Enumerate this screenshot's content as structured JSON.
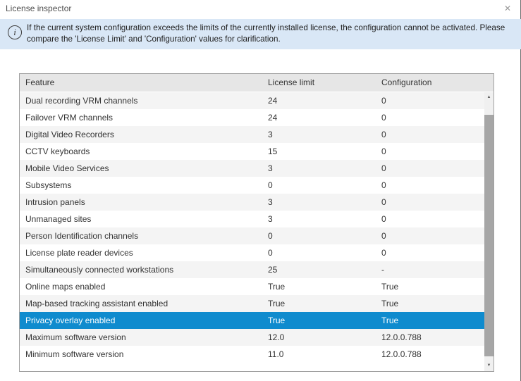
{
  "window": {
    "title": "License inspector",
    "close_icon": "✕"
  },
  "banner": {
    "info_icon": "i",
    "text": "If the current system configuration exceeds the limits of the currently installed license, the configuration cannot be activated. Please compare the 'License Limit' and 'Configuration' values for clarification."
  },
  "table": {
    "columns": {
      "feature": "Feature",
      "license_limit": "License limit",
      "configuration": "Configuration"
    },
    "rows": [
      {
        "feature": "Dual recording VRM channels",
        "license_limit": "24",
        "configuration": "0",
        "selected": false
      },
      {
        "feature": "Failover VRM channels",
        "license_limit": "24",
        "configuration": "0",
        "selected": false
      },
      {
        "feature": "Digital Video Recorders",
        "license_limit": "3",
        "configuration": "0",
        "selected": false
      },
      {
        "feature": "CCTV keyboards",
        "license_limit": "15",
        "configuration": "0",
        "selected": false
      },
      {
        "feature": "Mobile Video Services",
        "license_limit": "3",
        "configuration": "0",
        "selected": false
      },
      {
        "feature": "Subsystems",
        "license_limit": "0",
        "configuration": "0",
        "selected": false
      },
      {
        "feature": "Intrusion panels",
        "license_limit": "3",
        "configuration": "0",
        "selected": false
      },
      {
        "feature": "Unmanaged sites",
        "license_limit": "3",
        "configuration": "0",
        "selected": false
      },
      {
        "feature": "Person Identification channels",
        "license_limit": "0",
        "configuration": "0",
        "selected": false
      },
      {
        "feature": "License plate reader devices",
        "license_limit": "0",
        "configuration": "0",
        "selected": false
      },
      {
        "feature": "Simultaneously connected workstations",
        "license_limit": "25",
        "configuration": "-",
        "selected": false
      },
      {
        "feature": "Online maps enabled",
        "license_limit": "True",
        "configuration": "True",
        "selected": false
      },
      {
        "feature": "Map-based tracking assistant enabled",
        "license_limit": "True",
        "configuration": "True",
        "selected": false
      },
      {
        "feature": "Privacy overlay enabled",
        "license_limit": "True",
        "configuration": "True",
        "selected": true
      },
      {
        "feature": "Maximum software version",
        "license_limit": "12.0",
        "configuration": "12.0.0.788",
        "selected": false
      },
      {
        "feature": "Minimum software version",
        "license_limit": "11.0",
        "configuration": "12.0.0.788",
        "selected": false
      }
    ]
  },
  "colors": {
    "banner_bg": "#d9e7f6",
    "selection_bg": "#0f8bce",
    "selection_text": "#ffffff",
    "header_bg": "#e6e6e6",
    "row_alt_bg": "#f4f4f4"
  },
  "scrollbar": {
    "up_icon": "▲",
    "down_icon": "▼"
  }
}
